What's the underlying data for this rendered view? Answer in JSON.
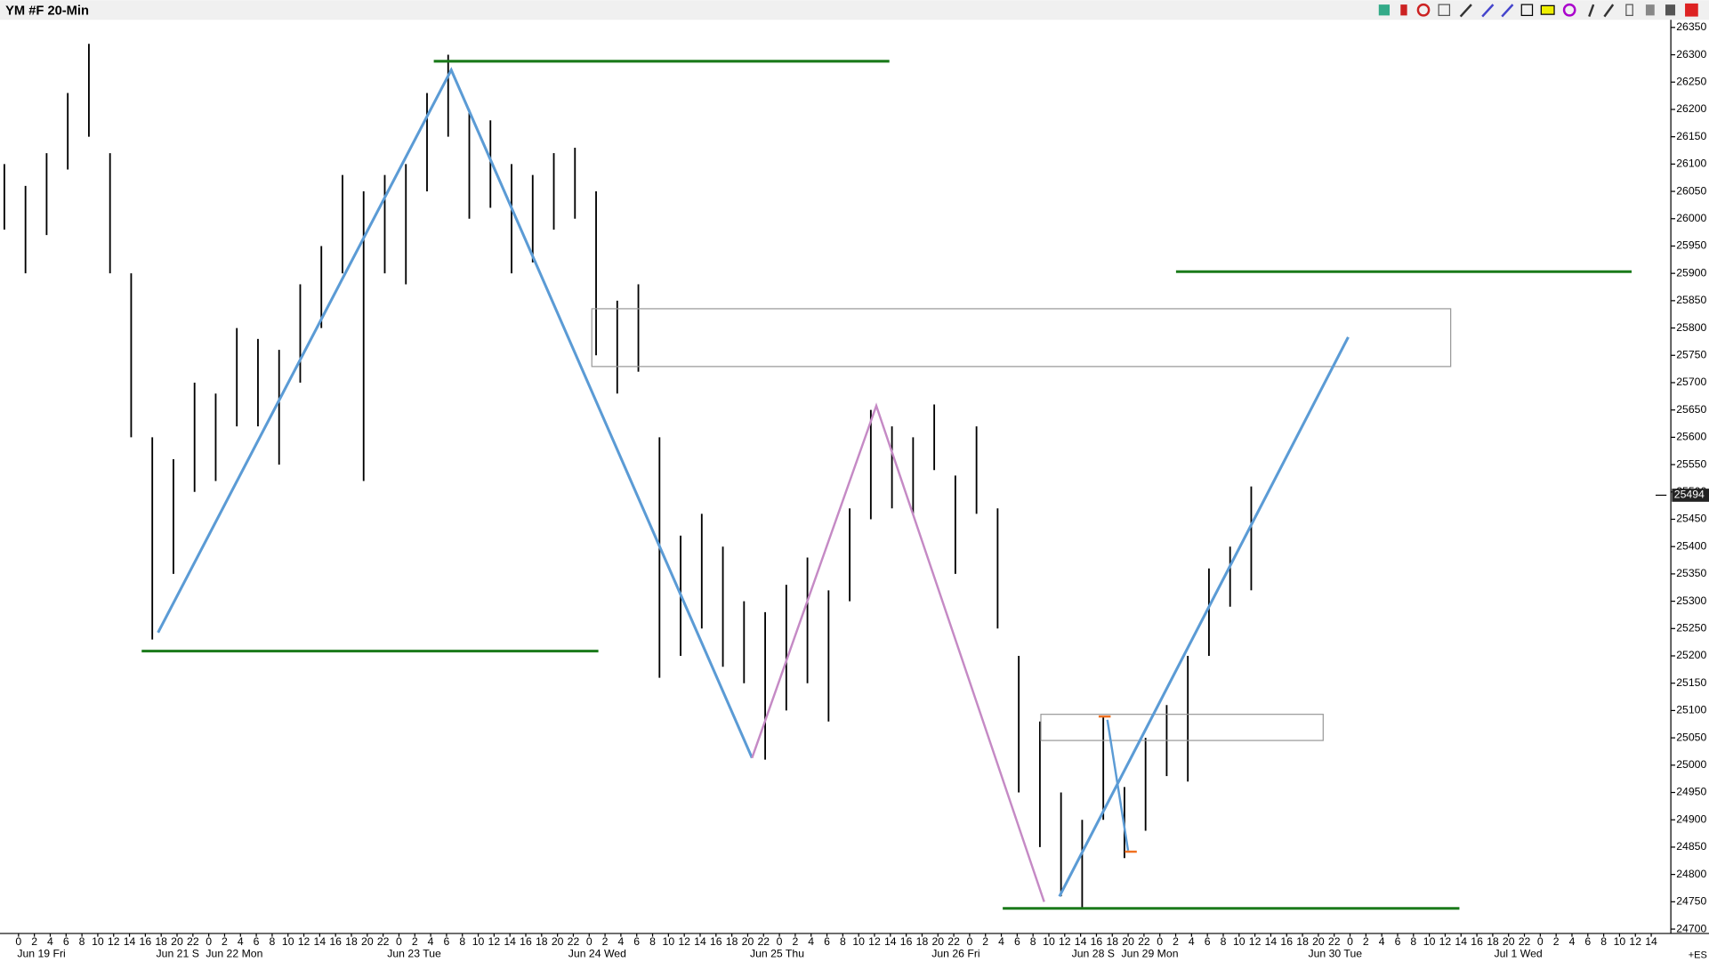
{
  "chart_data": {
    "type": "ohlc",
    "title": "YM #F 20-Min",
    "high": [
      26100,
      26060,
      26120,
      26230,
      26320,
      26120,
      25900,
      25600,
      25560,
      25700,
      25680,
      25800,
      25780,
      25760,
      25880,
      25950,
      26080,
      26050,
      26080,
      26100,
      26230,
      26300,
      26200,
      26180,
      26100,
      26080,
      26120,
      26130,
      26050,
      25850,
      25880,
      25600,
      25420,
      25460,
      25400,
      25300,
      25280,
      25330,
      25380,
      25320,
      25470,
      25650,
      25620,
      25600,
      25660,
      25530,
      25620,
      25470,
      25200,
      25080,
      24950,
      24900,
      25090,
      24960,
      25050,
      25110,
      25200,
      25360,
      25400,
      25510
    ],
    "low": [
      25980,
      25900,
      25970,
      26090,
      26150,
      25900,
      25600,
      25230,
      25350,
      25500,
      25520,
      25620,
      25620,
      25550,
      25700,
      25800,
      25900,
      25520,
      25900,
      25880,
      26050,
      26150,
      26000,
      26020,
      25900,
      25920,
      25980,
      26000,
      25750,
      25680,
      25720,
      25160,
      25200,
      25250,
      25180,
      25150,
      25010,
      25100,
      25150,
      25080,
      25300,
      25450,
      25470,
      25460,
      25540,
      25350,
      25460,
      25250,
      24950,
      24850,
      24760,
      24740,
      24900,
      24830,
      24880,
      24980,
      24970,
      25200,
      25290,
      25320
    ],
    "color": "#000000",
    "ylim": [
      24700,
      26350
    ],
    "yticks": [
      24700,
      24750,
      24800,
      24850,
      24900,
      24950,
      25000,
      25050,
      25100,
      25150,
      25200,
      25250,
      25300,
      25350,
      25400,
      25450,
      25500,
      25550,
      25600,
      25650,
      25700,
      25750,
      25800,
      25850,
      25900,
      25950,
      26000,
      26050,
      26100,
      26150,
      26200,
      26250,
      26300,
      26350
    ],
    "last_price": 25494,
    "last_price_label": "25494",
    "hour_labels": [
      "0",
      "2",
      "4",
      "6",
      "8",
      "10",
      "12",
      "14",
      "16",
      "18",
      "20",
      "22",
      "0",
      "2",
      "4",
      "6",
      "8",
      "10",
      "12",
      "14",
      "16",
      "18",
      "20",
      "22",
      "0",
      "2",
      "4",
      "6",
      "8",
      "10",
      "12",
      "14",
      "16",
      "18",
      "20",
      "22",
      "0",
      "2",
      "4",
      "6",
      "8",
      "10",
      "12",
      "14",
      "16",
      "18",
      "20",
      "22",
      "0",
      "2",
      "4",
      "6",
      "8",
      "10",
      "12",
      "14",
      "16",
      "18",
      "20",
      "22",
      "0",
      "2",
      "4",
      "6",
      "8",
      "10",
      "12",
      "14",
      "16",
      "18",
      "20",
      "22",
      "0",
      "2",
      "4",
      "6",
      "8",
      "10",
      "12",
      "14",
      "16",
      "18",
      "20",
      "22",
      "0",
      "2",
      "4",
      "6",
      "8",
      "10",
      "12",
      "14",
      "16",
      "18",
      "20",
      "22",
      "0",
      "2",
      "4",
      "6",
      "8",
      "10",
      "12",
      "14"
    ],
    "date_labels": [
      "Jun 19 Fri",
      "Jun 21 S",
      "Jun 22 Mon",
      "Jun 23 Tue",
      "Jun 24 Wed",
      "Jun 25 Thu",
      "Jun 26 Fri",
      "Jun 28 S",
      "Jun 29 Mon",
      "Jun 30 Tue",
      "Jul 1 Wed"
    ],
    "corner_note": "+ES"
  }
}
